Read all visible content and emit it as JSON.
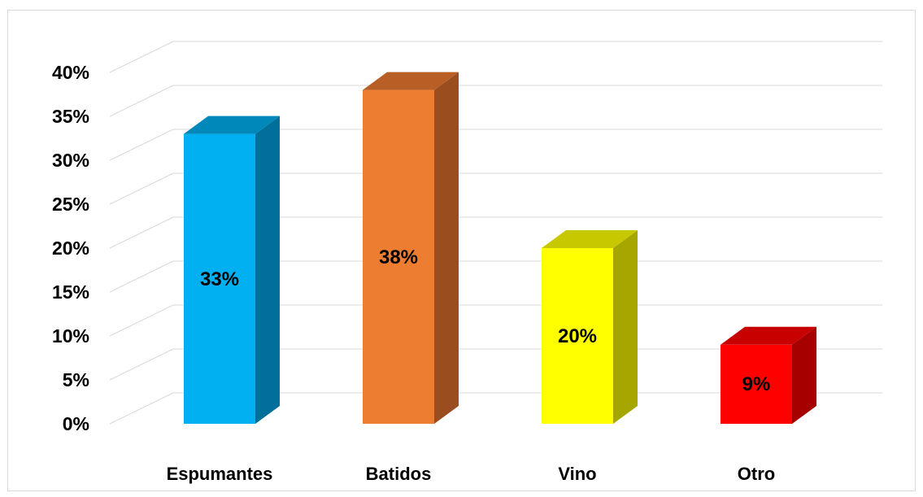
{
  "chart_data": {
    "type": "bar",
    "style": "3d-column",
    "categories": [
      "Espumantes",
      "Batidos",
      "Vino",
      "Otro"
    ],
    "values": [
      33,
      38,
      20,
      9
    ],
    "value_labels": [
      "33%",
      "38%",
      "20%",
      "9%"
    ],
    "colors": {
      "front": [
        "#00b0f0",
        "#ed7d31",
        "#ffff00",
        "#ff0000"
      ],
      "side": [
        "#006f99",
        "#9a4d1e",
        "#a6a600",
        "#a60000"
      ],
      "top": [
        "#0088bb",
        "#b85f25",
        "#c8c800",
        "#c80000"
      ]
    },
    "ylim": [
      0,
      40
    ],
    "y_ticks": [
      "0%",
      "5%",
      "10%",
      "15%",
      "20%",
      "25%",
      "30%",
      "35%",
      "40%"
    ],
    "grid": true,
    "legend": "none",
    "title": "",
    "xlabel": "",
    "ylabel": ""
  }
}
